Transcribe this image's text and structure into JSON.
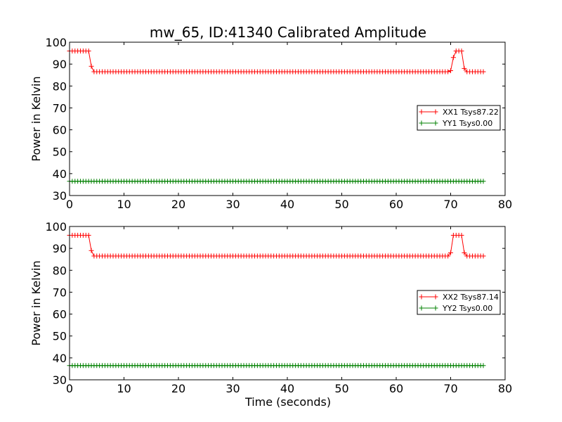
{
  "figure": {
    "title": "mw_65, ID:41340 Calibrated Amplitude",
    "xlabel": "Time (seconds)"
  },
  "colors": {
    "xx": "#ff0000",
    "yy": "#008000",
    "axes": "#000000",
    "background": "#ffffff"
  },
  "chart_data": [
    {
      "type": "line",
      "ylabel": "Power in Kelvin",
      "xlim": [
        0,
        80
      ],
      "ylim": [
        30,
        100
      ],
      "xticks": [
        0,
        10,
        20,
        30,
        40,
        50,
        60,
        70,
        80
      ],
      "yticks": [
        30,
        40,
        50,
        60,
        70,
        80,
        90,
        100
      ],
      "grid": false,
      "legend_position": "right",
      "sample_interval": 0.5,
      "series": [
        {
          "name": "XX1 Tsys87.22",
          "color": "#ff0000",
          "marker": "+",
          "segments": [
            {
              "x_start": 0,
              "x_end": 3.5,
              "value": 96
            },
            {
              "x": 4,
              "value": 89
            },
            {
              "x_start": 4.5,
              "x_end": 69.5,
              "value": 86.5
            },
            {
              "x": 70,
              "value": 87
            },
            {
              "x": 70.5,
              "value": 93
            },
            {
              "x_start": 71,
              "x_end": 72,
              "value": 96
            },
            {
              "x": 72.5,
              "value": 88
            },
            {
              "x_start": 73,
              "x_end": 76,
              "value": 86.5
            }
          ]
        },
        {
          "name": "YY1 Tsys0.00",
          "color": "#008000",
          "marker": "+",
          "segments": [
            {
              "x_start": 0,
              "x_end": 76,
              "value": 36.5
            }
          ]
        }
      ]
    },
    {
      "type": "line",
      "ylabel": "Power in Kelvin",
      "xlabel": "Time (seconds)",
      "xlim": [
        0,
        80
      ],
      "ylim": [
        30,
        100
      ],
      "xticks": [
        0,
        10,
        20,
        30,
        40,
        50,
        60,
        70,
        80
      ],
      "yticks": [
        30,
        40,
        50,
        60,
        70,
        80,
        90,
        100
      ],
      "grid": false,
      "legend_position": "right",
      "sample_interval": 0.5,
      "series": [
        {
          "name": "XX2 Tsys87.14",
          "color": "#ff0000",
          "marker": "+",
          "segments": [
            {
              "x_start": 0,
              "x_end": 3.5,
              "value": 96
            },
            {
              "x": 4,
              "value": 89
            },
            {
              "x_start": 4.5,
              "x_end": 69.5,
              "value": 86.5
            },
            {
              "x": 70,
              "value": 88
            },
            {
              "x_start": 70.5,
              "x_end": 72,
              "value": 96
            },
            {
              "x": 72.5,
              "value": 88
            },
            {
              "x_start": 73,
              "x_end": 76,
              "value": 86.5
            }
          ]
        },
        {
          "name": "YY2 Tsys0.00",
          "color": "#008000",
          "marker": "+",
          "segments": [
            {
              "x_start": 0,
              "x_end": 76,
              "value": 36.5
            }
          ]
        }
      ]
    }
  ]
}
